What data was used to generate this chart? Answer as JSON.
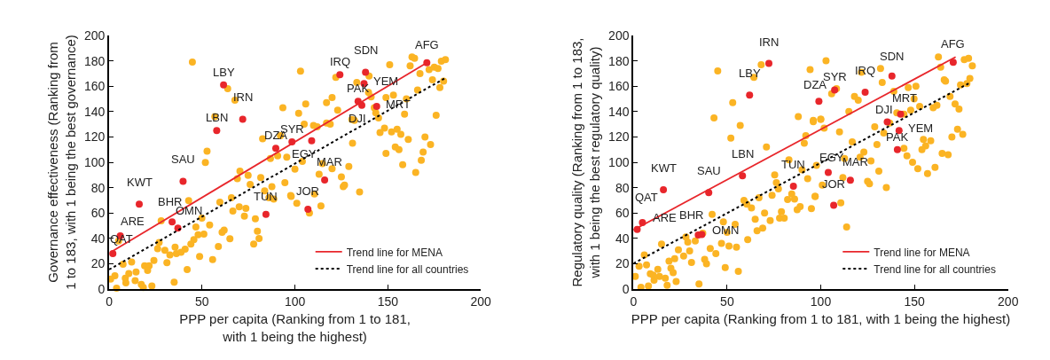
{
  "chart_data": [
    {
      "type": "scatter",
      "xlabel": "PPP per capita (Ranking from 1 to 181,\nwith 1 being the highest)",
      "ylabel": "Governance effectiveness (Ranking from\n1 to 183, with 1 being the best governance)",
      "xlim": [
        0,
        200
      ],
      "xticks": [
        0,
        50,
        100,
        150,
        200
      ],
      "ylim": [
        0,
        200
      ],
      "yticks": [
        0,
        20,
        40,
        60,
        80,
        100,
        120,
        140,
        160,
        180,
        200
      ],
      "legend": "bottom right",
      "marker": "circle",
      "series": [
        {
          "color": "#fbb424",
          "x": [
            44.8,
            63.8,
            67.7,
            56.9,
            93.5,
            82.6,
            92.2,
            52.7,
            51.8,
            86.8,
            90.7,
            95.6,
            70.4,
            69,
            74.8,
            75.9,
            81.6,
            87.6,
            94.6,
            83.7,
            97.7,
            42.8,
            59.6,
            65.8,
            66.6,
            70,
            73.6,
            72.8,
            78.7,
            79.8,
            80.7,
            77.8,
            86,
            88.6,
            28,
            49.9,
            54.1,
            46.7,
            47.9,
            45.6,
            44,
            51,
            61.9,
            60.8,
            65,
            58.8,
            55.7,
            48.7,
            40.9,
            42,
            35.5,
            36.2,
            38.7,
            30,
            32.7,
            26.1,
            26.9,
            24.1,
            31.1,
            35,
            23,
            18.4,
            17.3,
            19.1,
            21.5,
            20.7,
            14.5,
            12.1,
            10.6,
            8.7,
            9,
            14,
            7.5,
            5.1,
            3.1,
            0.8,
            4,
            103,
            122,
            133.3,
            139.9,
            151,
            162,
            163,
            164.4,
            172.2,
            167.3,
            175,
            177,
            174,
            178.8,
            181,
            178,
            180,
            166,
            160,
            159,
            176,
            120,
            117,
            123,
            105.8,
            102,
            105,
            110,
            112,
            117,
            119,
            130.6,
            132,
            139.6,
            141,
            142.7,
            143.5,
            145,
            149,
            153,
            145.8,
            148.2,
            152,
            155,
            157,
            161,
            170,
            173,
            131,
            149,
            154,
            156,
            158,
            169,
            168,
            165,
            129,
            125,
            126,
            126.7,
            134.8,
            120,
            113,
            114.8,
            104,
            100,
            98,
            101,
            110.5,
            114,
            107.8
          ],
          "values": [
            179,
            158,
            149,
            136,
            143,
            118.6,
            121,
            108.8,
            99.8,
            103,
            105,
            104,
            93,
            87,
            89.7,
            82.6,
            88,
            80.7,
            83.9,
            77.5,
            73.8,
            69.7,
            68.5,
            72,
            61.6,
            64.8,
            63.6,
            57.5,
            55.5,
            45.7,
            39.9,
            35.5,
            72,
            71,
            53.8,
            56,
            50.6,
            48.9,
            42.8,
            39,
            35.5,
            43.3,
            46.5,
            44.7,
            39.6,
            33.5,
            23.2,
            25.7,
            31.5,
            15.4,
            33,
            28,
            29,
            30.6,
            26.9,
            31.8,
            36.7,
            22.5,
            20.8,
            5.4,
            2.4,
            1.2,
            3.7,
            18.3,
            18.3,
            14.7,
            13.4,
            21.3,
            12.2,
            8.6,
            4.9,
            6.6,
            19.6,
            37.9,
            10.5,
            7.8,
            0.7,
            171.9,
            167,
            163,
            168,
            177,
            176,
            183,
            182,
            173,
            170,
            175,
            174,
            165,
            179.7,
            181,
            159,
            164,
            157,
            150,
            138,
            137,
            151,
            147,
            141,
            146,
            138.6,
            130,
            129,
            128,
            131,
            130,
            133.7,
            133,
            155,
            151.6,
            143,
            139,
            135,
            151,
            153,
            123.5,
            127,
            124,
            126,
            122,
            118,
            120,
            114,
            115,
            107,
            112,
            110,
            98,
            108,
            101.5,
            92,
            96.6,
            88.5,
            80.7,
            82,
            76.5,
            95,
            90.5,
            99,
            100.7,
            94.6,
            73,
            67.7,
            75,
            65.5,
            60
          ]
        },
        {
          "color": "#e8262b",
          "x": [
            2,
            6,
            16.2,
            33.9,
            37,
            39.8,
            57.9,
            61.6,
            71.9,
            84.4,
            89.7,
            98.4,
            109,
            116,
            107,
            124.2,
            138,
            137.2,
            134,
            136,
            144,
            171
          ],
          "values": [
            28,
            42,
            67,
            53,
            48,
            85,
            125,
            161,
            134,
            59,
            111,
            116,
            117,
            86,
            63,
            169,
            171,
            162,
            148,
            145,
            144,
            178.5
          ]
        },
        {
          "type": "line",
          "name": "Trend line for MENA",
          "color": "#e8262b",
          "line_style": "solid",
          "marker": "none",
          "x": [
            1.2,
            171
          ],
          "values": [
            29.3,
            178.5
          ]
        },
        {
          "type": "line",
          "name": "Trend line for all countries",
          "color": "#000000",
          "line_style": "dotted",
          "marker": "none",
          "x": [
            0,
            180.7
          ],
          "values": [
            15.4,
            166.3
          ]
        }
      ],
      "annotations": [
        {
          "text": "QAT",
          "x": 2,
          "y": 28
        },
        {
          "text": "ARE",
          "x": 6,
          "y": 42
        },
        {
          "text": "KWT",
          "x": 16.2,
          "y": 67
        },
        {
          "text": "BHR",
          "x": 33.9,
          "y": 53
        },
        {
          "text": "OMN",
          "x": 37,
          "y": 48
        },
        {
          "text": "SAU",
          "x": 39.8,
          "y": 85
        },
        {
          "text": "LBN",
          "x": 57.9,
          "y": 125
        },
        {
          "text": "LBY",
          "x": 61.6,
          "y": 161
        },
        {
          "text": "IRN",
          "x": 71.9,
          "y": 134
        },
        {
          "text": "TUN",
          "x": 84.4,
          "y": 59
        },
        {
          "text": "DZA",
          "x": 89.7,
          "y": 111
        },
        {
          "text": "SYR",
          "x": 98.4,
          "y": 116
        },
        {
          "text": "EGY",
          "x": 109,
          "y": 117
        },
        {
          "text": "MAR",
          "x": 116,
          "y": 86
        },
        {
          "text": "JOR",
          "x": 107,
          "y": 63
        },
        {
          "text": "IRQ",
          "x": 124.2,
          "y": 169
        },
        {
          "text": "SDN",
          "x": 138,
          "y": 171
        },
        {
          "text": "YEM",
          "x": 137.2,
          "y": 162
        },
        {
          "text": "PAK",
          "x": 134,
          "y": 148
        },
        {
          "text": "DJI",
          "x": 136,
          "y": 145
        },
        {
          "text": "MRT",
          "x": 144,
          "y": 144
        },
        {
          "text": "AFG",
          "x": 171,
          "y": 178.5
        }
      ]
    },
    {
      "type": "scatter",
      "xlabel": "PPP per capita (Ranking from 1 to 181, with 1 being the highest)",
      "ylabel": "Regulatory quality (Ranking from 1 to 183,\nwith 1 being the best regulatory quality)",
      "xlim": [
        0,
        200
      ],
      "xticks": [
        0,
        50,
        100,
        150,
        200
      ],
      "ylim": [
        0,
        200
      ],
      "yticks": [
        0,
        20,
        40,
        60,
        80,
        100,
        120,
        140,
        160,
        180,
        200
      ],
      "legend": "bottom right",
      "marker": "circle",
      "series": [
        {
          "color": "#fbb424",
          "x": [
            45,
            68.2,
            64.3,
            94.3,
            53,
            43,
            57,
            52,
            71,
            88,
            96,
            100,
            92,
            91.2,
            83,
            90,
            93,
            75.4,
            76.3,
            77.4,
            74,
            67,
            59,
            60.5,
            63,
            84.5,
            86,
            82.3,
            97,
            95,
            89,
            87.4,
            79,
            78,
            80.5,
            73,
            70,
            65,
            69,
            66,
            61,
            54.3,
            50,
            48,
            42,
            41,
            44,
            47,
            51,
            55,
            49,
            56,
            37,
            33,
            29,
            28,
            24,
            26.8,
            30,
            31,
            38,
            39,
            22,
            19,
            20,
            21.2,
            22.8,
            18,
            17,
            35,
            13,
            13.9,
            11,
            10.5,
            9,
            7,
            5.8,
            15,
            3,
            1,
            4,
            8,
            102.8,
            108.4,
            105.8,
            121.7,
            131.9,
            132.8,
            139,
            118,
            120,
            146.7,
            150.8,
            162.8,
            164,
            176.6,
            178.9,
            180.9,
            165.9,
            166.6,
            179.6,
            174.6,
            178,
            169,
            171.7,
            173.8,
            162,
            160,
            152.8,
            148,
            149.8,
            140.6,
            144.4,
            136.8,
            133.6,
            128.8,
            130,
            115,
            110,
            101.8,
            100,
            96,
            116.8,
            123,
            121,
            126.8,
            131,
            112.7,
            97.7,
            100.8,
            111.8,
            125,
            126,
            135,
            110.7,
            97,
            113.8,
            144.4,
            146,
            149,
            151.8,
            154.8,
            156,
            158.7,
            154,
            157,
            161,
            164.8,
            168,
            170,
            173,
            175.8
          ],
          "values": [
            172,
            177,
            167,
            173,
            147,
            135,
            129,
            119,
            112,
            136,
            133,
            134,
            121,
            115,
            102,
            94,
            87,
            90,
            84,
            79,
            74,
            72,
            70,
            67,
            64,
            75,
            71,
            70.6,
            73,
            63.5,
            65,
            62.6,
            61,
            56,
            56,
            54,
            60,
            55,
            48,
            46,
            39,
            51,
            44.7,
            53,
            59,
            32,
            28,
            36,
            34,
            33,
            17,
            14,
            44,
            38,
            37,
            41,
            31,
            26,
            30,
            21,
            23.5,
            20,
            24,
            22,
            16.5,
            13,
            6,
            3,
            8.5,
            4,
            15.5,
            10,
            7,
            11,
            12,
            19,
            27,
            35.5,
            18,
            10,
            1.4,
            2.4,
            180,
            158,
            154,
            171,
            174,
            163,
            156,
            152,
            149,
            159,
            160,
            183,
            175,
            181,
            182,
            176,
            165,
            164,
            166,
            161,
            162,
            152,
            146,
            142,
            145,
            143,
            144,
            141,
            150,
            139,
            138,
            131,
            123,
            128,
            114,
            140,
            124,
            127,
            134,
            132,
            116,
            108,
            104,
            101,
            93,
            103,
            97.6,
            82,
            88,
            85,
            83,
            80,
            68,
            73,
            49,
            111,
            105,
            100,
            95,
            118,
            113,
            117,
            110,
            91,
            96,
            107,
            106,
            120,
            126,
            122
          ]
        },
        {
          "color": "#e8262b",
          "x": [
            2,
            4.8,
            16,
            34.6,
            36.5,
            40.2,
            58.2,
            62,
            72.3,
            85.4,
            99,
            107.4,
            104,
            115.8,
            106.9,
            123.7,
            138,
            141.8,
            140.9,
            135.5,
            142.6,
            170.7
          ],
          "values": [
            47,
            52.5,
            78.4,
            42.6,
            43,
            76,
            89.4,
            153,
            177.9,
            81.2,
            148,
            157,
            92,
            85.9,
            66,
            155.3,
            168,
            125,
            110,
            131.8,
            138,
            178.8
          ]
        },
        {
          "type": "line",
          "name": "Trend line for MENA",
          "color": "#e8262b",
          "line_style": "solid",
          "marker": "none",
          "x": [
            0,
            172
          ],
          "values": [
            46.6,
            183
          ]
        },
        {
          "type": "line",
          "name": "Trend line for all countries",
          "color": "#000000",
          "line_style": "dotted",
          "marker": "none",
          "x": [
            0,
            180
          ],
          "values": [
            20.2,
            163
          ]
        }
      ],
      "annotations": [
        {
          "text": "QAT",
          "x": 2,
          "y": 47
        },
        {
          "text": "ARE",
          "x": 4.8,
          "y": 52.5
        },
        {
          "text": "KWT",
          "x": 16,
          "y": 78.4
        },
        {
          "text": "BHR",
          "x": 34.6,
          "y": 42.6
        },
        {
          "text": "OMN",
          "x": 36.5,
          "y": 43
        },
        {
          "text": "SAU",
          "x": 40.2,
          "y": 76
        },
        {
          "text": "LBN",
          "x": 58.2,
          "y": 89.4
        },
        {
          "text": "LBY",
          "x": 62,
          "y": 153
        },
        {
          "text": "IRN",
          "x": 72.3,
          "y": 177.9
        },
        {
          "text": "TUN",
          "x": 85.4,
          "y": 81.2
        },
        {
          "text": "DZA",
          "x": 99,
          "y": 148
        },
        {
          "text": "SYR",
          "x": 107.4,
          "y": 157
        },
        {
          "text": "EGY",
          "x": 104,
          "y": 92
        },
        {
          "text": "MAR",
          "x": 115.8,
          "y": 85.9
        },
        {
          "text": "JOR",
          "x": 106.9,
          "y": 66
        },
        {
          "text": "IRQ",
          "x": 123.7,
          "y": 155.3
        },
        {
          "text": "SDN",
          "x": 138,
          "y": 168
        },
        {
          "text": "YEM",
          "x": 141.8,
          "y": 125
        },
        {
          "text": "PAK",
          "x": 140.9,
          "y": 110
        },
        {
          "text": "DJI",
          "x": 135.5,
          "y": 131.8
        },
        {
          "text": "MRT",
          "x": 142.6,
          "y": 138
        },
        {
          "text": "AFG",
          "x": 170.7,
          "y": 178.8
        }
      ]
    }
  ]
}
